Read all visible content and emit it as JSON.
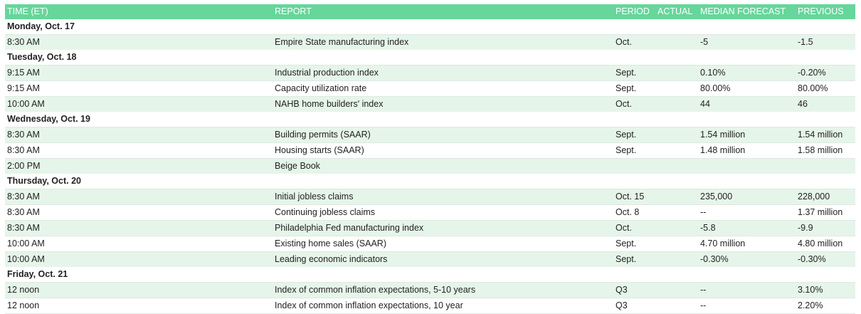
{
  "headers": {
    "time": "TIME (ET)",
    "report": "REPORT",
    "period": "PERIOD",
    "actual": "ACTUAL",
    "median": "MEDIAN FORECAST",
    "previous": "PREVIOUS"
  },
  "days": [
    {
      "label": "Monday, Oct. 17",
      "events": [
        {
          "time": "8:30 AM",
          "report": "Empire State manufacturing index",
          "period": "Oct.",
          "actual": "",
          "median": "-5",
          "previous": "-1.5"
        }
      ]
    },
    {
      "label": "Tuesday, Oct. 18",
      "events": [
        {
          "time": "9:15 AM",
          "report": "Industrial production index",
          "period": "Sept.",
          "actual": "",
          "median": "0.10%",
          "previous": "-0.20%"
        },
        {
          "time": "9:15 AM",
          "report": "Capacity utilization rate",
          "period": "Sept.",
          "actual": "",
          "median": "80.00%",
          "previous": "80.00%"
        },
        {
          "time": "10:00 AM",
          "report": "NAHB home builders' index",
          "period": "Oct.",
          "actual": "",
          "median": "44",
          "previous": "46"
        }
      ]
    },
    {
      "label": "Wednesday, Oct. 19",
      "events": [
        {
          "time": "8:30 AM",
          "report": "Building permits (SAAR)",
          "period": "Sept.",
          "actual": "",
          "median": "1.54 million",
          "previous": "1.54 million"
        },
        {
          "time": "8:30 AM",
          "report": "Housing starts (SAAR)",
          "period": "Sept.",
          "actual": "",
          "median": "1.48 million",
          "previous": "1.58 million"
        },
        {
          "time": "2:00 PM",
          "report": "Beige Book",
          "period": "",
          "actual": "",
          "median": "",
          "previous": ""
        }
      ]
    },
    {
      "label": "Thursday, Oct. 20",
      "events": [
        {
          "time": "8:30 AM",
          "report": "Initial jobless claims",
          "period": "Oct. 15",
          "actual": "",
          "median": "235,000",
          "previous": "228,000"
        },
        {
          "time": "8:30 AM",
          "report": "Continuing jobless claims",
          "period": "Oct. 8",
          "actual": "",
          "median": "--",
          "previous": "1.37 million"
        },
        {
          "time": "8:30 AM",
          "report": "Philadelphia Fed manufacturing index",
          "period": "Oct.",
          "actual": "",
          "median": "-5.8",
          "previous": "-9.9"
        },
        {
          "time": "10:00 AM",
          "report": "Existing home sales (SAAR)",
          "period": "Sept.",
          "actual": "",
          "median": "4.70 million",
          "previous": "4.80 million"
        },
        {
          "time": "10:00 AM",
          "report": "Leading economic indicators",
          "period": "Sept.",
          "actual": "",
          "median": "-0.30%",
          "previous": "-0.30%"
        }
      ]
    },
    {
      "label": "Friday, Oct. 21",
      "events": [
        {
          "time": "12 noon",
          "report": "Index of common inflation expectations, 5-10 years",
          "period": "Q3",
          "actual": "",
          "median": "--",
          "previous": "3.10%"
        },
        {
          "time": "12 noon",
          "report": "Index of common inflation expectations, 10 year",
          "period": "Q3",
          "actual": "",
          "median": "--",
          "previous": "2.20%"
        }
      ]
    }
  ],
  "colors": {
    "header_bg": "#66d69a",
    "shade_row": "#e6f5ea"
  }
}
